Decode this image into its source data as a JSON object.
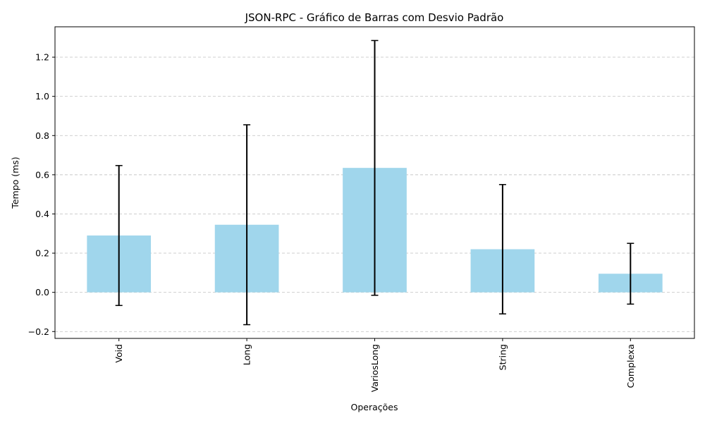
{
  "chart_data": {
    "type": "bar",
    "title": "JSON-RPC - Gráfico de Barras com Desvio Padrão",
    "xlabel": "Operações",
    "ylabel": "Tempo (ms)",
    "categories": [
      "Void",
      "Long",
      "VariosLong",
      "String",
      "Complexa"
    ],
    "values": [
      0.29,
      0.345,
      0.635,
      0.22,
      0.095
    ],
    "errors": [
      0.357,
      0.51,
      0.65,
      0.33,
      0.155
    ],
    "ylim": [
      -0.235,
      1.355
    ],
    "yticks": [
      -0.2,
      0.0,
      0.2,
      0.4,
      0.6,
      0.8,
      1.0,
      1.2
    ],
    "ytick_labels": [
      "−0.2",
      "0.0",
      "0.2",
      "0.4",
      "0.6",
      "0.8",
      "1.0",
      "1.2"
    ],
    "grid": "y-dashed",
    "bar_color": "#a0d6ec",
    "error_color": "#000000",
    "grid_color": "#c8c8c8"
  }
}
